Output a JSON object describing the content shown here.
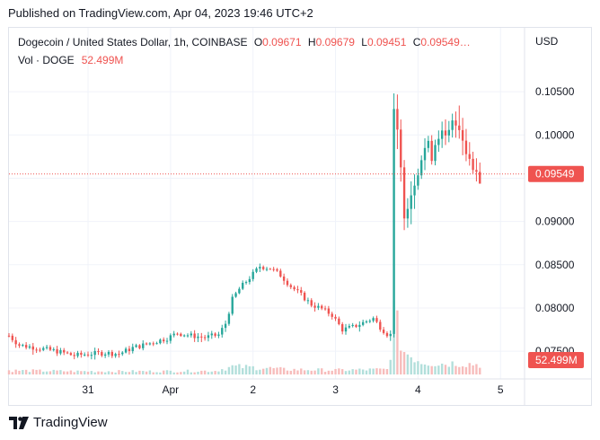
{
  "published": "Published on TradingView.com, Apr 04, 2023 19:46 UTC+2",
  "legend": {
    "symbol": "Dogecoin / United States Dollar, 1h, COINBASE",
    "o_label": "O",
    "o_value": "0.09671",
    "h_label": "H",
    "h_value": "0.09679",
    "l_label": "L",
    "l_value": "0.09451",
    "c_label": "C",
    "c_value": "0.09549…",
    "vol_label": "Vol · DOGE",
    "vol_value": "52.499M"
  },
  "footer": {
    "brand": "TradingView"
  },
  "colors": {
    "up": "#26a69a",
    "down": "#ef5350",
    "up_vol": "#b2dfdb",
    "down_vol": "#f7bcbb"
  },
  "chart_data": {
    "type": "candlestick",
    "currency_label": "USD",
    "y_ticks": [
      "0.10500",
      "0.10000",
      "0.09500",
      "0.09000",
      "0.08500",
      "0.08000",
      "0.07500"
    ],
    "ylim": [
      0.0718,
      0.1075
    ],
    "x_ticks": [
      {
        "label": "31",
        "t": 3
      },
      {
        "label": "Apr",
        "t": 27
      },
      {
        "label": "2",
        "t": 51
      },
      {
        "label": "3",
        "t": 75
      },
      {
        "label": "4",
        "t": 99
      },
      {
        "label": "5",
        "t": 123
      }
    ],
    "xlim": [
      -20,
      130
    ],
    "last_price": "0.09549",
    "volume_label": "52.499M",
    "anchors": [
      [
        -20,
        0.0768
      ],
      [
        -17,
        0.0757
      ],
      [
        -12,
        0.0754
      ],
      [
        -6,
        0.075
      ],
      [
        -1,
        0.0745
      ],
      [
        3,
        0.0747
      ],
      [
        8,
        0.0748
      ],
      [
        12,
        0.0747
      ],
      [
        16,
        0.0754
      ],
      [
        20,
        0.0758
      ],
      [
        26,
        0.0765
      ],
      [
        29,
        0.0771
      ],
      [
        33,
        0.0768
      ],
      [
        37,
        0.0766
      ],
      [
        41,
        0.0769
      ],
      [
        43,
        0.0782
      ],
      [
        45,
        0.081
      ],
      [
        47,
        0.0822
      ],
      [
        50,
        0.0835
      ],
      [
        53,
        0.0848
      ],
      [
        56,
        0.0846
      ],
      [
        59,
        0.0838
      ],
      [
        62,
        0.0825
      ],
      [
        65,
        0.0815
      ],
      [
        68,
        0.0804
      ],
      [
        71,
        0.0799
      ],
      [
        74,
        0.0792
      ],
      [
        77,
        0.0775
      ],
      [
        80,
        0.0778
      ],
      [
        83,
        0.0783
      ],
      [
        86,
        0.0788
      ],
      [
        88,
        0.0778
      ],
      [
        90,
        0.077
      ],
      [
        91,
        0.0769
      ],
      [
        92,
        0.103
      ],
      [
        93,
        0.0998
      ],
      [
        95,
        0.0915
      ],
      [
        97,
        0.0935
      ],
      [
        99,
        0.0965
      ],
      [
        101,
        0.0985
      ],
      [
        103,
        0.098
      ],
      [
        105,
        0.1005
      ],
      [
        107,
        0.099
      ],
      [
        109,
        0.101
      ],
      [
        111,
        0.1015
      ],
      [
        113,
        0.0985
      ],
      [
        115,
        0.0962
      ],
      [
        117,
        0.0955
      ]
    ],
    "volume_anchors": [
      [
        -20,
        0.28
      ],
      [
        0,
        0.22
      ],
      [
        20,
        0.22
      ],
      [
        40,
        0.25
      ],
      [
        45,
        0.55
      ],
      [
        50,
        0.5
      ],
      [
        55,
        0.45
      ],
      [
        60,
        0.35
      ],
      [
        75,
        0.3
      ],
      [
        90,
        0.35
      ],
      [
        91,
        1.6
      ],
      [
        92,
        4.2
      ],
      [
        93,
        3.2
      ],
      [
        95,
        1.6
      ],
      [
        100,
        0.9
      ],
      [
        105,
        0.75
      ],
      [
        110,
        0.8
      ],
      [
        117,
        0.7
      ]
    ]
  }
}
